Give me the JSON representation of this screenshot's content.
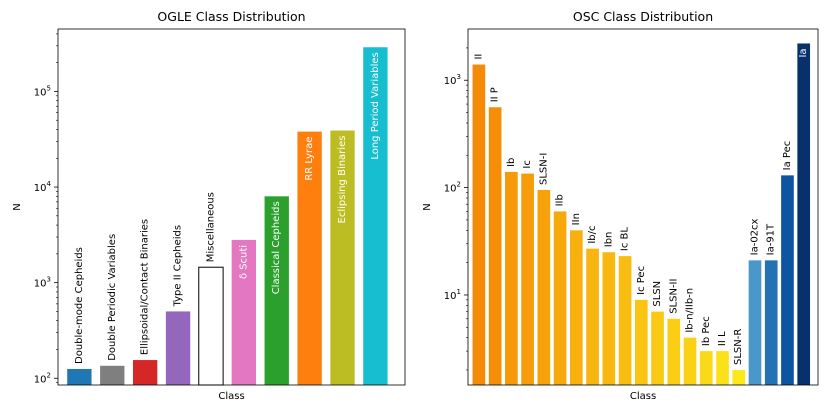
{
  "chart_data": [
    {
      "type": "bar",
      "title": "OGLE Class Distribution",
      "xlabel": "Class",
      "ylabel": "N",
      "yscale": "log",
      "ylim": [
        85,
        450000
      ],
      "yticks": [
        100,
        1000,
        10000,
        100000
      ],
      "ytick_labels": [
        [
          "10",
          "2"
        ],
        [
          "10",
          "3"
        ],
        [
          "10",
          "4"
        ],
        [
          "10",
          "5"
        ]
      ],
      "grid": false,
      "categories": [
        "Double-mode Cepheids",
        "Double Periodic Variables",
        "Ellipsoidal/Contact Binaries",
        "Type II Cepheids",
        "Miscellaneous",
        "δ Scuti",
        "Classical Cepheids",
        "RR Lyrae",
        "Eclipsing Binaries",
        "Long Period Variables"
      ],
      "values": [
        125,
        135,
        155,
        500,
        1450,
        2800,
        8000,
        38000,
        39000,
        290000
      ],
      "colors": [
        "#1f77b4",
        "#7f7f7f",
        "#d62728",
        "#9467bd",
        "#ffffff",
        "#e377c2",
        "#2ca02c",
        "#ff7f0e",
        "#bcbd22",
        "#17becf"
      ],
      "label_inside": [
        false,
        false,
        false,
        false,
        false,
        true,
        true,
        true,
        true,
        true
      ]
    },
    {
      "type": "bar",
      "title": "OSC Class Distribution",
      "xlabel": "Class",
      "ylabel": "N",
      "yscale": "log",
      "ylim": [
        1.45,
        3000
      ],
      "yticks": [
        10,
        100,
        1000
      ],
      "ytick_labels": [
        [
          "10",
          "1"
        ],
        [
          "10",
          "2"
        ],
        [
          "10",
          "3"
        ]
      ],
      "grid": false,
      "categories": [
        "II",
        "II P",
        "Ib",
        "Ic",
        "SLSN-I",
        "IIb",
        "IIn",
        "Ib/c",
        "Ibn",
        "Ic BL",
        "Ic Pec",
        "SLSN",
        "SLSN-II",
        "Ib-n/IIb-n",
        "Ib Pec",
        "II L",
        "SLSN-R",
        "Ia-02cx",
        "Ia-91T",
        "Ia Pec",
        "Ia"
      ],
      "values": [
        1400,
        560,
        140,
        135,
        95,
        60,
        40,
        27,
        25,
        23,
        9,
        7,
        6,
        4,
        3,
        3,
        2,
        21,
        21,
        130,
        2200
      ],
      "colors": [
        "#f58a07",
        "#f58d07",
        "#f69a0a",
        "#f69c0a",
        "#f7a20b",
        "#f7a90c",
        "#f8b00e",
        "#f8b50f",
        "#f9b810",
        "#f9bc11",
        "#fac412",
        "#fac913",
        "#fbcd14",
        "#fbd116",
        "#fcd917",
        "#fce018",
        "#fde81a",
        "#4a98c9",
        "#2272b4",
        "#0d55a1",
        "#08306b"
      ],
      "label_inside": [
        false,
        false,
        false,
        false,
        false,
        false,
        false,
        false,
        false,
        false,
        false,
        false,
        false,
        false,
        false,
        false,
        false,
        false,
        false,
        false,
        true
      ]
    }
  ]
}
